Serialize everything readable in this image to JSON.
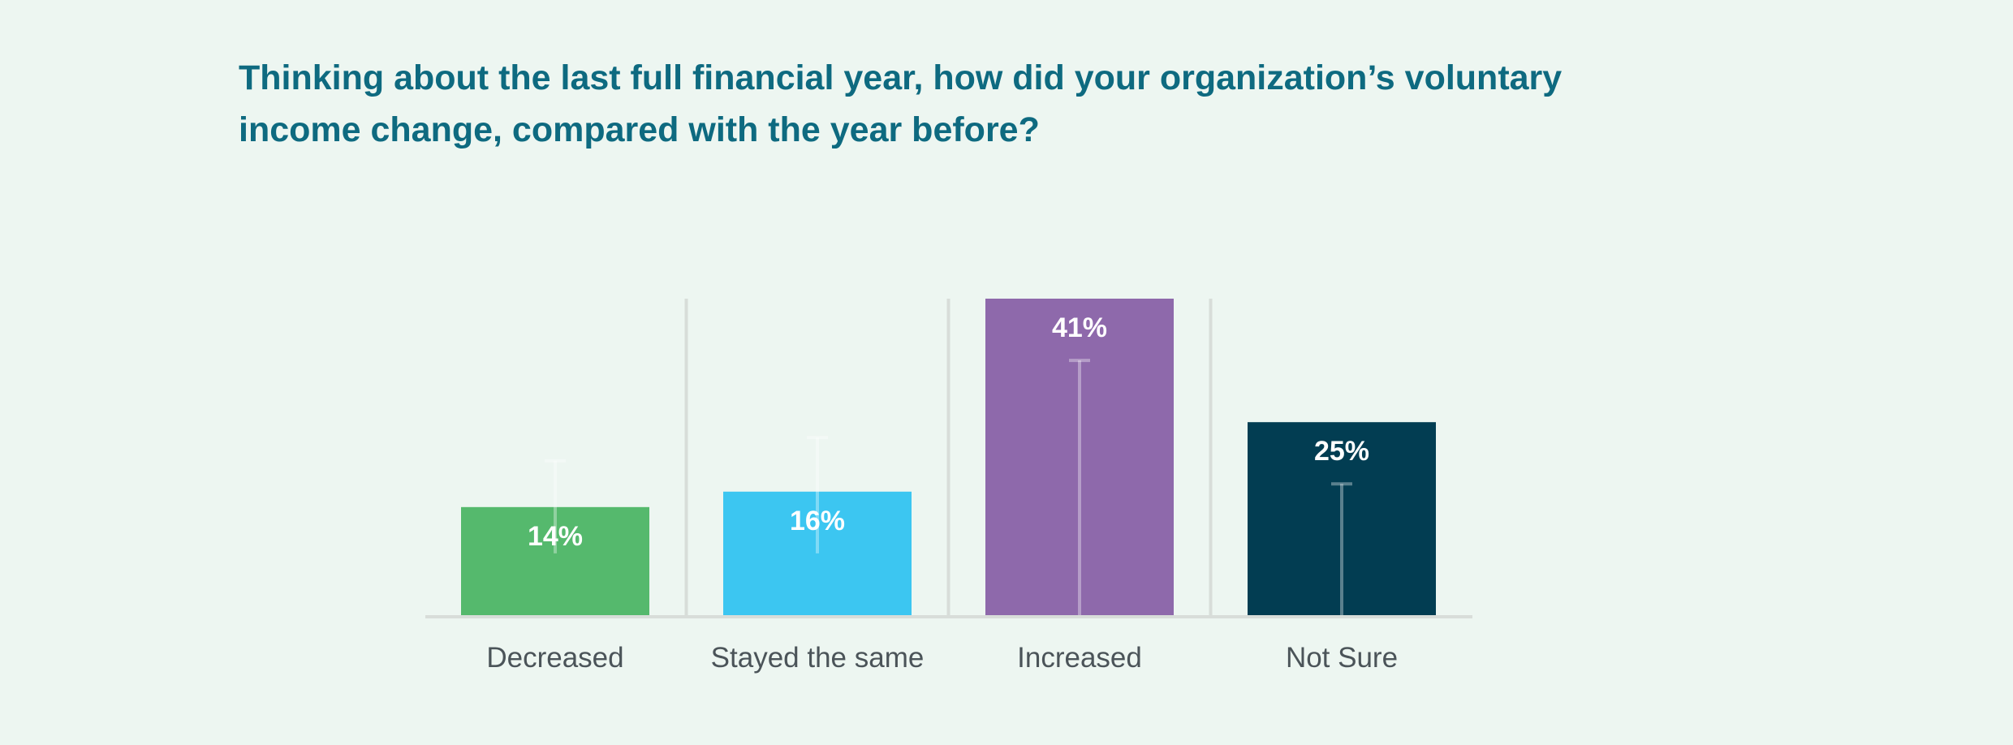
{
  "chart_data": {
    "type": "bar",
    "title": "Thinking about the last full financial year, how did your organization’s voluntary income change, compared with the year before?",
    "categories": [
      "Decreased",
      "Stayed the same",
      "Increased",
      "Not Sure"
    ],
    "values": [
      14,
      16,
      41,
      25
    ],
    "value_labels": [
      "14%",
      "16%",
      "41%",
      "25%"
    ],
    "error_bar_low": [
      8,
      8,
      0,
      0
    ],
    "error_bar_high": [
      20,
      23,
      33,
      17
    ],
    "ylim": [
      0,
      41
    ],
    "grid": false,
    "legend": "none",
    "xlabel": "",
    "ylabel": "",
    "colors": {
      "bars": [
        "#55b96d",
        "#3cc6f1",
        "#8e69ab",
        "#023d52"
      ],
      "title": "#0e6a80",
      "tick_labels": "#4b5459",
      "value_labels": "#ffffff",
      "separators": "#d8ddd9",
      "axis": "#d8ddd9",
      "background": "#edf6f1"
    }
  }
}
